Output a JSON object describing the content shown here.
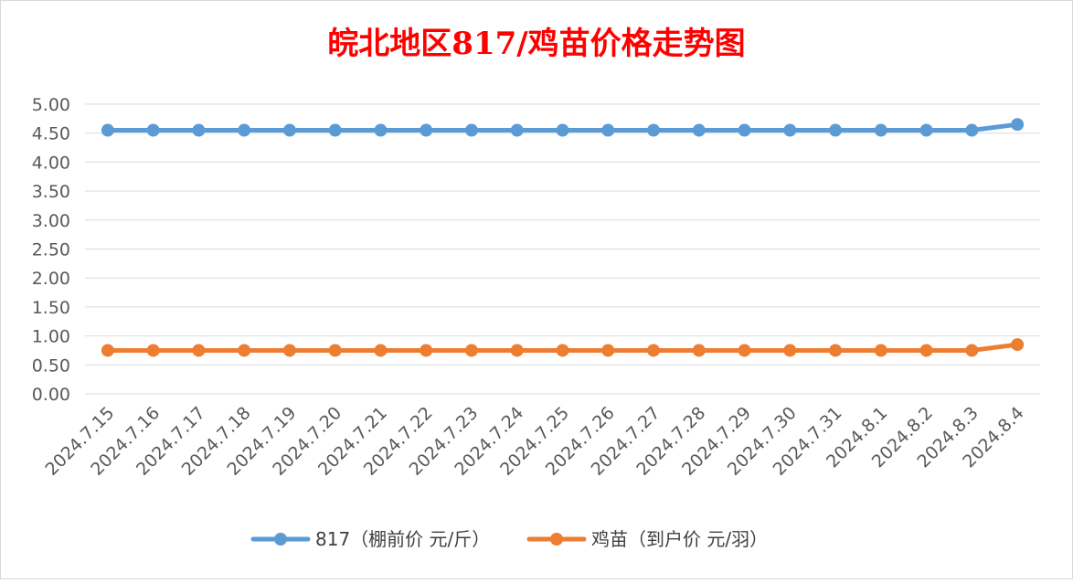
{
  "chart_data": {
    "type": "line",
    "title": "皖北地区817/鸡苗价格走势图",
    "categories": [
      "2024.7.15",
      "2024.7.16",
      "2024.7.17",
      "2024.7.18",
      "2024.7.19",
      "2024.7.20",
      "2024.7.21",
      "2024.7.22",
      "2024.7.23",
      "2024.7.24",
      "2024.7.25",
      "2024.7.26",
      "2024.7.27",
      "2024.7.28",
      "2024.7.29",
      "2024.7.30",
      "2024.7.31",
      "2024.8.1",
      "2024.8.2",
      "2024.8.3",
      "2024.8.4"
    ],
    "series": [
      {
        "name": "817（棚前价 元/斤）",
        "color": "#5b9bd5",
        "values": [
          4.55,
          4.55,
          4.55,
          4.55,
          4.55,
          4.55,
          4.55,
          4.55,
          4.55,
          4.55,
          4.55,
          4.55,
          4.55,
          4.55,
          4.55,
          4.55,
          4.55,
          4.55,
          4.55,
          4.55,
          4.65
        ]
      },
      {
        "name": "鸡苗（到户价 元/羽）",
        "color": "#ed7d31",
        "values": [
          0.75,
          0.75,
          0.75,
          0.75,
          0.75,
          0.75,
          0.75,
          0.75,
          0.75,
          0.75,
          0.75,
          0.75,
          0.75,
          0.75,
          0.75,
          0.75,
          0.75,
          0.75,
          0.75,
          0.75,
          0.85
        ]
      }
    ],
    "ylim": [
      0,
      5
    ],
    "yticks": [
      "0.00",
      "0.50",
      "1.00",
      "1.50",
      "2.00",
      "2.50",
      "3.00",
      "3.50",
      "4.00",
      "4.50",
      "5.00"
    ],
    "grid": true,
    "legend_position": "bottom"
  }
}
